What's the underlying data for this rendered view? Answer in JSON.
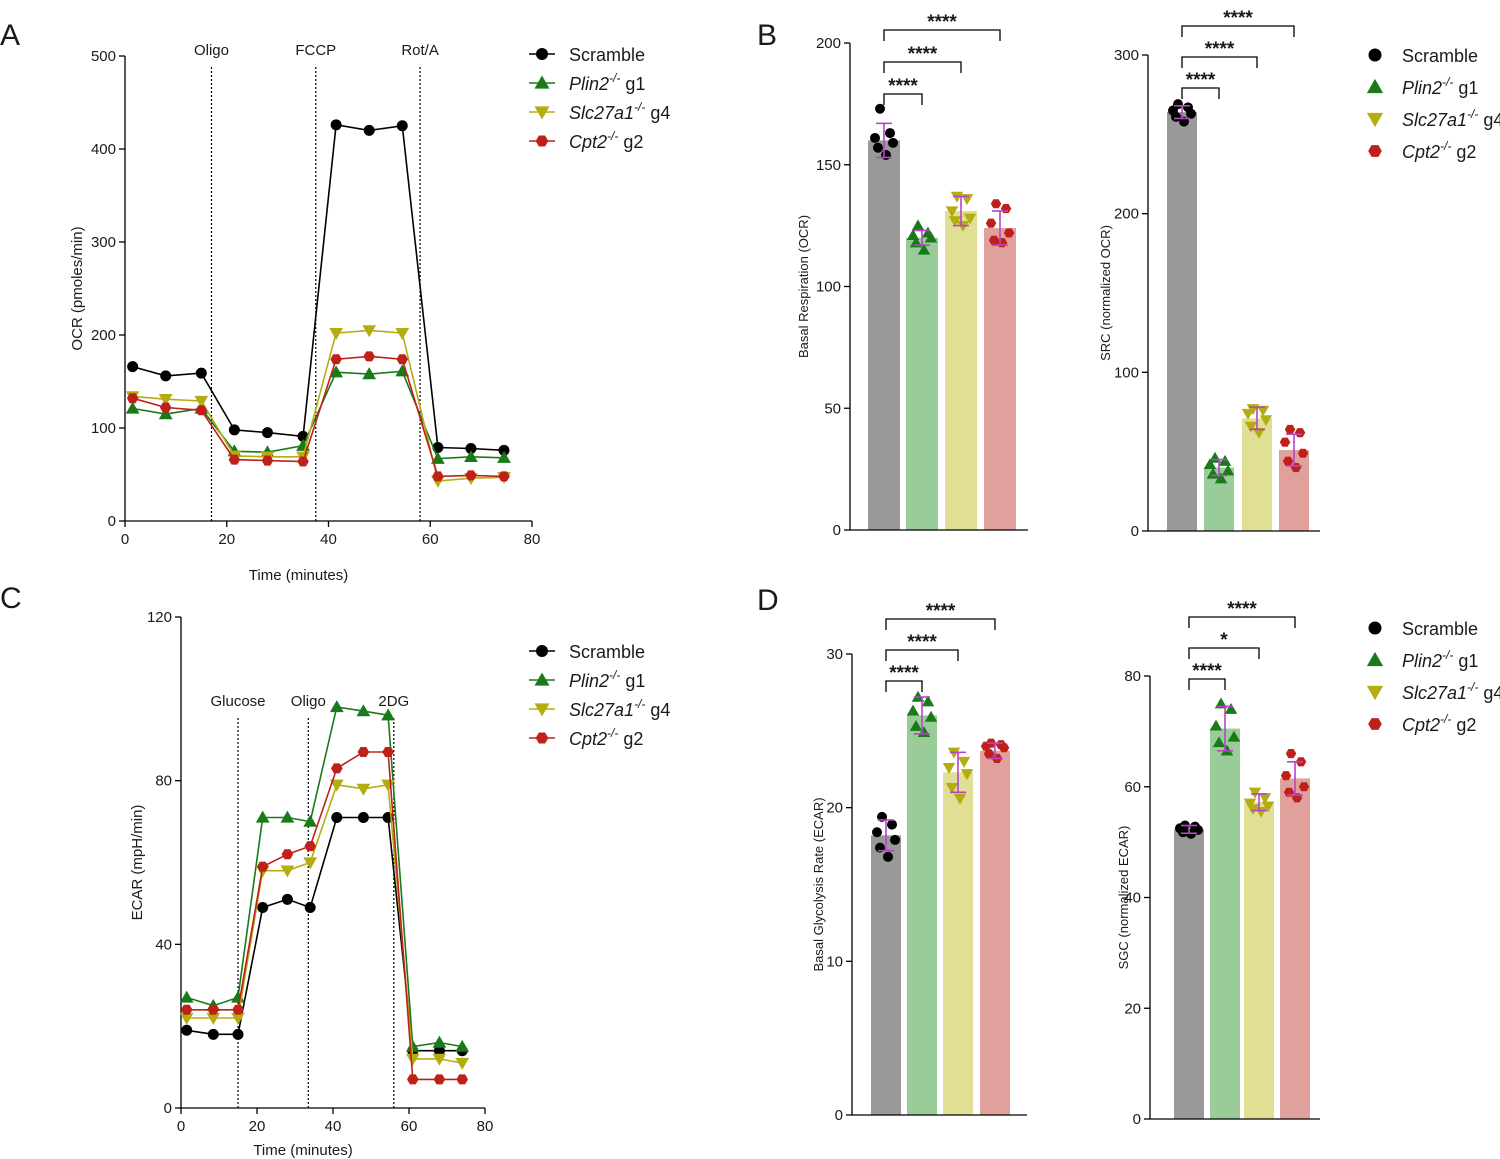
{
  "colors": {
    "scramble": "#000000",
    "plin2": "#1a7a1a",
    "slc27a1": "#b3ad12",
    "cpt2": "#c0201a",
    "bar_scramble": "#999999",
    "bar_plin2": "#99cc99",
    "bar_slc27a1": "#e0df94",
    "bar_cpt2": "#e0a19c",
    "errorbar": "#b844c8"
  },
  "legend": [
    {
      "key": "scramble",
      "name": "Scramble",
      "italic": "",
      "sup": "",
      "suffix": ""
    },
    {
      "key": "plin2",
      "name": "Plin2-/- g1",
      "italic": "Plin2",
      "sup": "-/-",
      "suffix": " g1"
    },
    {
      "key": "slc27a1",
      "name": "Slc27a1-/- g4",
      "italic": "Slc27a1",
      "sup": "-/-",
      "suffix": " g4"
    },
    {
      "key": "cpt2",
      "name": "Cpt2-/- g2",
      "italic": "Cpt2",
      "sup": "-/-",
      "suffix": " g2"
    }
  ],
  "chart_data": [
    {
      "id": "A",
      "panel_label": "A",
      "type": "line",
      "xlabel": "Time (minutes)",
      "ylabel": "OCR (pmoles/min)",
      "xlim": [
        0,
        80
      ],
      "ylim": [
        0,
        500
      ],
      "xticks": [
        0,
        20,
        40,
        60,
        80
      ],
      "yticks": [
        0,
        100,
        200,
        300,
        400,
        500
      ],
      "events": [
        {
          "x": 17,
          "label": "Oligo"
        },
        {
          "x": 37.5,
          "label": "FCCP"
        },
        {
          "x": 58,
          "label": "Rot/A"
        }
      ],
      "x": [
        1.5,
        8,
        15,
        21.5,
        28,
        35,
        41.5,
        48,
        54.5,
        61.5,
        68,
        74.5
      ],
      "series": [
        {
          "key": "scramble",
          "name": "Scramble",
          "values": [
            166,
            156,
            159,
            98,
            95,
            91,
            426,
            420,
            425,
            79,
            78,
            76
          ]
        },
        {
          "key": "plin2",
          "name": "Plin2-/- g1",
          "values": [
            121,
            115,
            121,
            75,
            74,
            81,
            160,
            158,
            161,
            67,
            69,
            68
          ]
        },
        {
          "key": "slc27a1",
          "name": "Slc27a1-/- g4",
          "values": [
            134,
            131,
            129,
            70,
            69,
            69,
            202,
            205,
            202,
            43,
            46,
            47
          ]
        },
        {
          "key": "cpt2",
          "name": "Cpt2-/- g2",
          "values": [
            132,
            122,
            119,
            66,
            65,
            64,
            174,
            177,
            174,
            48,
            49,
            48
          ]
        }
      ]
    },
    {
      "id": "B1",
      "panel_label": "B",
      "type": "bar",
      "ylabel": "Basal Respiration (OCR)",
      "ylim": [
        0,
        200
      ],
      "yticks": [
        0,
        50,
        100,
        150,
        200
      ],
      "categories": [
        "Scramble",
        "Plin2-/- g1",
        "Slc27a1-/- g4",
        "Cpt2-/- g2"
      ],
      "values": [
        160,
        120,
        131,
        124
      ],
      "errors": [
        7,
        3,
        6,
        7
      ],
      "points": [
        [
          173,
          163,
          161,
          159,
          157,
          154
        ],
        [
          125,
          122,
          121,
          120,
          118,
          115
        ],
        [
          137,
          136,
          131,
          128,
          127,
          125
        ],
        [
          134,
          132,
          126,
          122,
          119,
          118
        ]
      ],
      "significance": [
        {
          "from": 0,
          "to": 1,
          "label": "****",
          "level": 0
        },
        {
          "from": 0,
          "to": 2,
          "label": "****",
          "level": 1
        },
        {
          "from": 0,
          "to": 3,
          "label": "****",
          "level": 2
        }
      ]
    },
    {
      "id": "B2",
      "panel_label": "",
      "type": "bar",
      "ylabel": "SRC (normalized OCR)",
      "ylim": [
        0,
        300
      ],
      "yticks": [
        0,
        100,
        200,
        300
      ],
      "categories": [
        "Scramble",
        "Plin2-/- g1",
        "Slc27a1-/- g4",
        "Cpt2-/- g2"
      ],
      "values": [
        264,
        40,
        71,
        51
      ],
      "errors": [
        4,
        5,
        7,
        10
      ],
      "points": [
        [
          269,
          267,
          265,
          263,
          261,
          258
        ],
        [
          46,
          44,
          42,
          38,
          36,
          33
        ],
        [
          77,
          76,
          74,
          70,
          66,
          62
        ],
        [
          64,
          62,
          56,
          49,
          44,
          40
        ]
      ],
      "significance": [
        {
          "from": 0,
          "to": 1,
          "label": "****",
          "level": 0
        },
        {
          "from": 0,
          "to": 2,
          "label": "****",
          "level": 1
        },
        {
          "from": 0,
          "to": 3,
          "label": "****",
          "level": 2
        }
      ]
    },
    {
      "id": "C",
      "panel_label": "C",
      "type": "line",
      "xlabel": "Time (minutes)",
      "ylabel": "ECAR (mpH/min)",
      "xlim": [
        0,
        80
      ],
      "ylim": [
        0,
        120
      ],
      "xticks": [
        0,
        20,
        40,
        60,
        80
      ],
      "yticks": [
        0,
        40,
        80,
        120
      ],
      "events": [
        {
          "x": 15,
          "label": "Glucose"
        },
        {
          "x": 33.5,
          "label": "Oligo"
        },
        {
          "x": 56,
          "label": "2DG"
        }
      ],
      "x": [
        1.5,
        8.5,
        15,
        21.5,
        28,
        34,
        41,
        48,
        54.5,
        61,
        68,
        74
      ],
      "series": [
        {
          "key": "scramble",
          "name": "Scramble",
          "values": [
            19,
            18,
            18,
            49,
            51,
            49,
            71,
            71,
            71,
            14,
            14,
            14
          ]
        },
        {
          "key": "plin2",
          "name": "Plin2-/- g1",
          "values": [
            27,
            25,
            27,
            71,
            71,
            70,
            98,
            97,
            96,
            15,
            16,
            15
          ]
        },
        {
          "key": "slc27a1",
          "name": "Slc27a1-/- g4",
          "values": [
            22,
            22,
            22,
            58,
            58,
            60,
            79,
            78,
            79,
            12,
            12,
            11
          ]
        },
        {
          "key": "cpt2",
          "name": "Cpt2-/- g2",
          "values": [
            24,
            24,
            24,
            59,
            62,
            64,
            83,
            87,
            87,
            7,
            7,
            7
          ]
        }
      ]
    },
    {
      "id": "D1",
      "panel_label": "D",
      "type": "bar",
      "ylabel": "Basal Glycolysis Rate (ECAR)",
      "ylim": [
        0,
        30
      ],
      "yticks": [
        0,
        10,
        20,
        30
      ],
      "categories": [
        "Scramble",
        "Plin2-/- g1",
        "Slc27a1-/- g4",
        "Cpt2-/- g2"
      ],
      "values": [
        18.2,
        26.0,
        22.3,
        23.7
      ],
      "errors": [
        1.0,
        1.2,
        1.3,
        0.5
      ],
      "points": [
        [
          19.4,
          18.9,
          18.4,
          17.9,
          17.4,
          16.8
        ],
        [
          27.2,
          26.9,
          26.3,
          25.9,
          25.3,
          24.9
        ],
        [
          23.6,
          23.0,
          22.6,
          22.2,
          21.3,
          20.6
        ],
        [
          24.2,
          24.1,
          24.0,
          23.9,
          23.5,
          23.2
        ]
      ],
      "significance": [
        {
          "from": 0,
          "to": 1,
          "label": "****",
          "level": 0
        },
        {
          "from": 0,
          "to": 2,
          "label": "****",
          "level": 1
        },
        {
          "from": 0,
          "to": 3,
          "label": "****",
          "level": 2
        }
      ]
    },
    {
      "id": "D2",
      "panel_label": "",
      "type": "bar",
      "ylabel": "SGC (normalized ECAR)",
      "ylim": [
        0,
        80
      ],
      "yticks": [
        0,
        20,
        40,
        60,
        80
      ],
      "categories": [
        "Scramble",
        "Plin2-/- g1",
        "Slc27a1-/- g4",
        "Cpt2-/- g2"
      ],
      "values": [
        52.3,
        70.5,
        57.2,
        61.5
      ],
      "errors": [
        0.7,
        4.0,
        1.5,
        3.0
      ],
      "points": [
        [
          53.0,
          52.8,
          52.5,
          52.2,
          51.8,
          51.5
        ],
        [
          75.0,
          74.0,
          71.0,
          69.0,
          68.0,
          66.5
        ],
        [
          59.0,
          58.0,
          57.0,
          56.5,
          56.0,
          55.5
        ],
        [
          66.0,
          64.5,
          62.0,
          60.0,
          59.0,
          58.0
        ]
      ],
      "significance": [
        {
          "from": 0,
          "to": 1,
          "label": "****",
          "level": 0
        },
        {
          "from": 0,
          "to": 2,
          "label": "*",
          "level": 1
        },
        {
          "from": 0,
          "to": 3,
          "label": "****",
          "level": 2
        }
      ]
    }
  ]
}
